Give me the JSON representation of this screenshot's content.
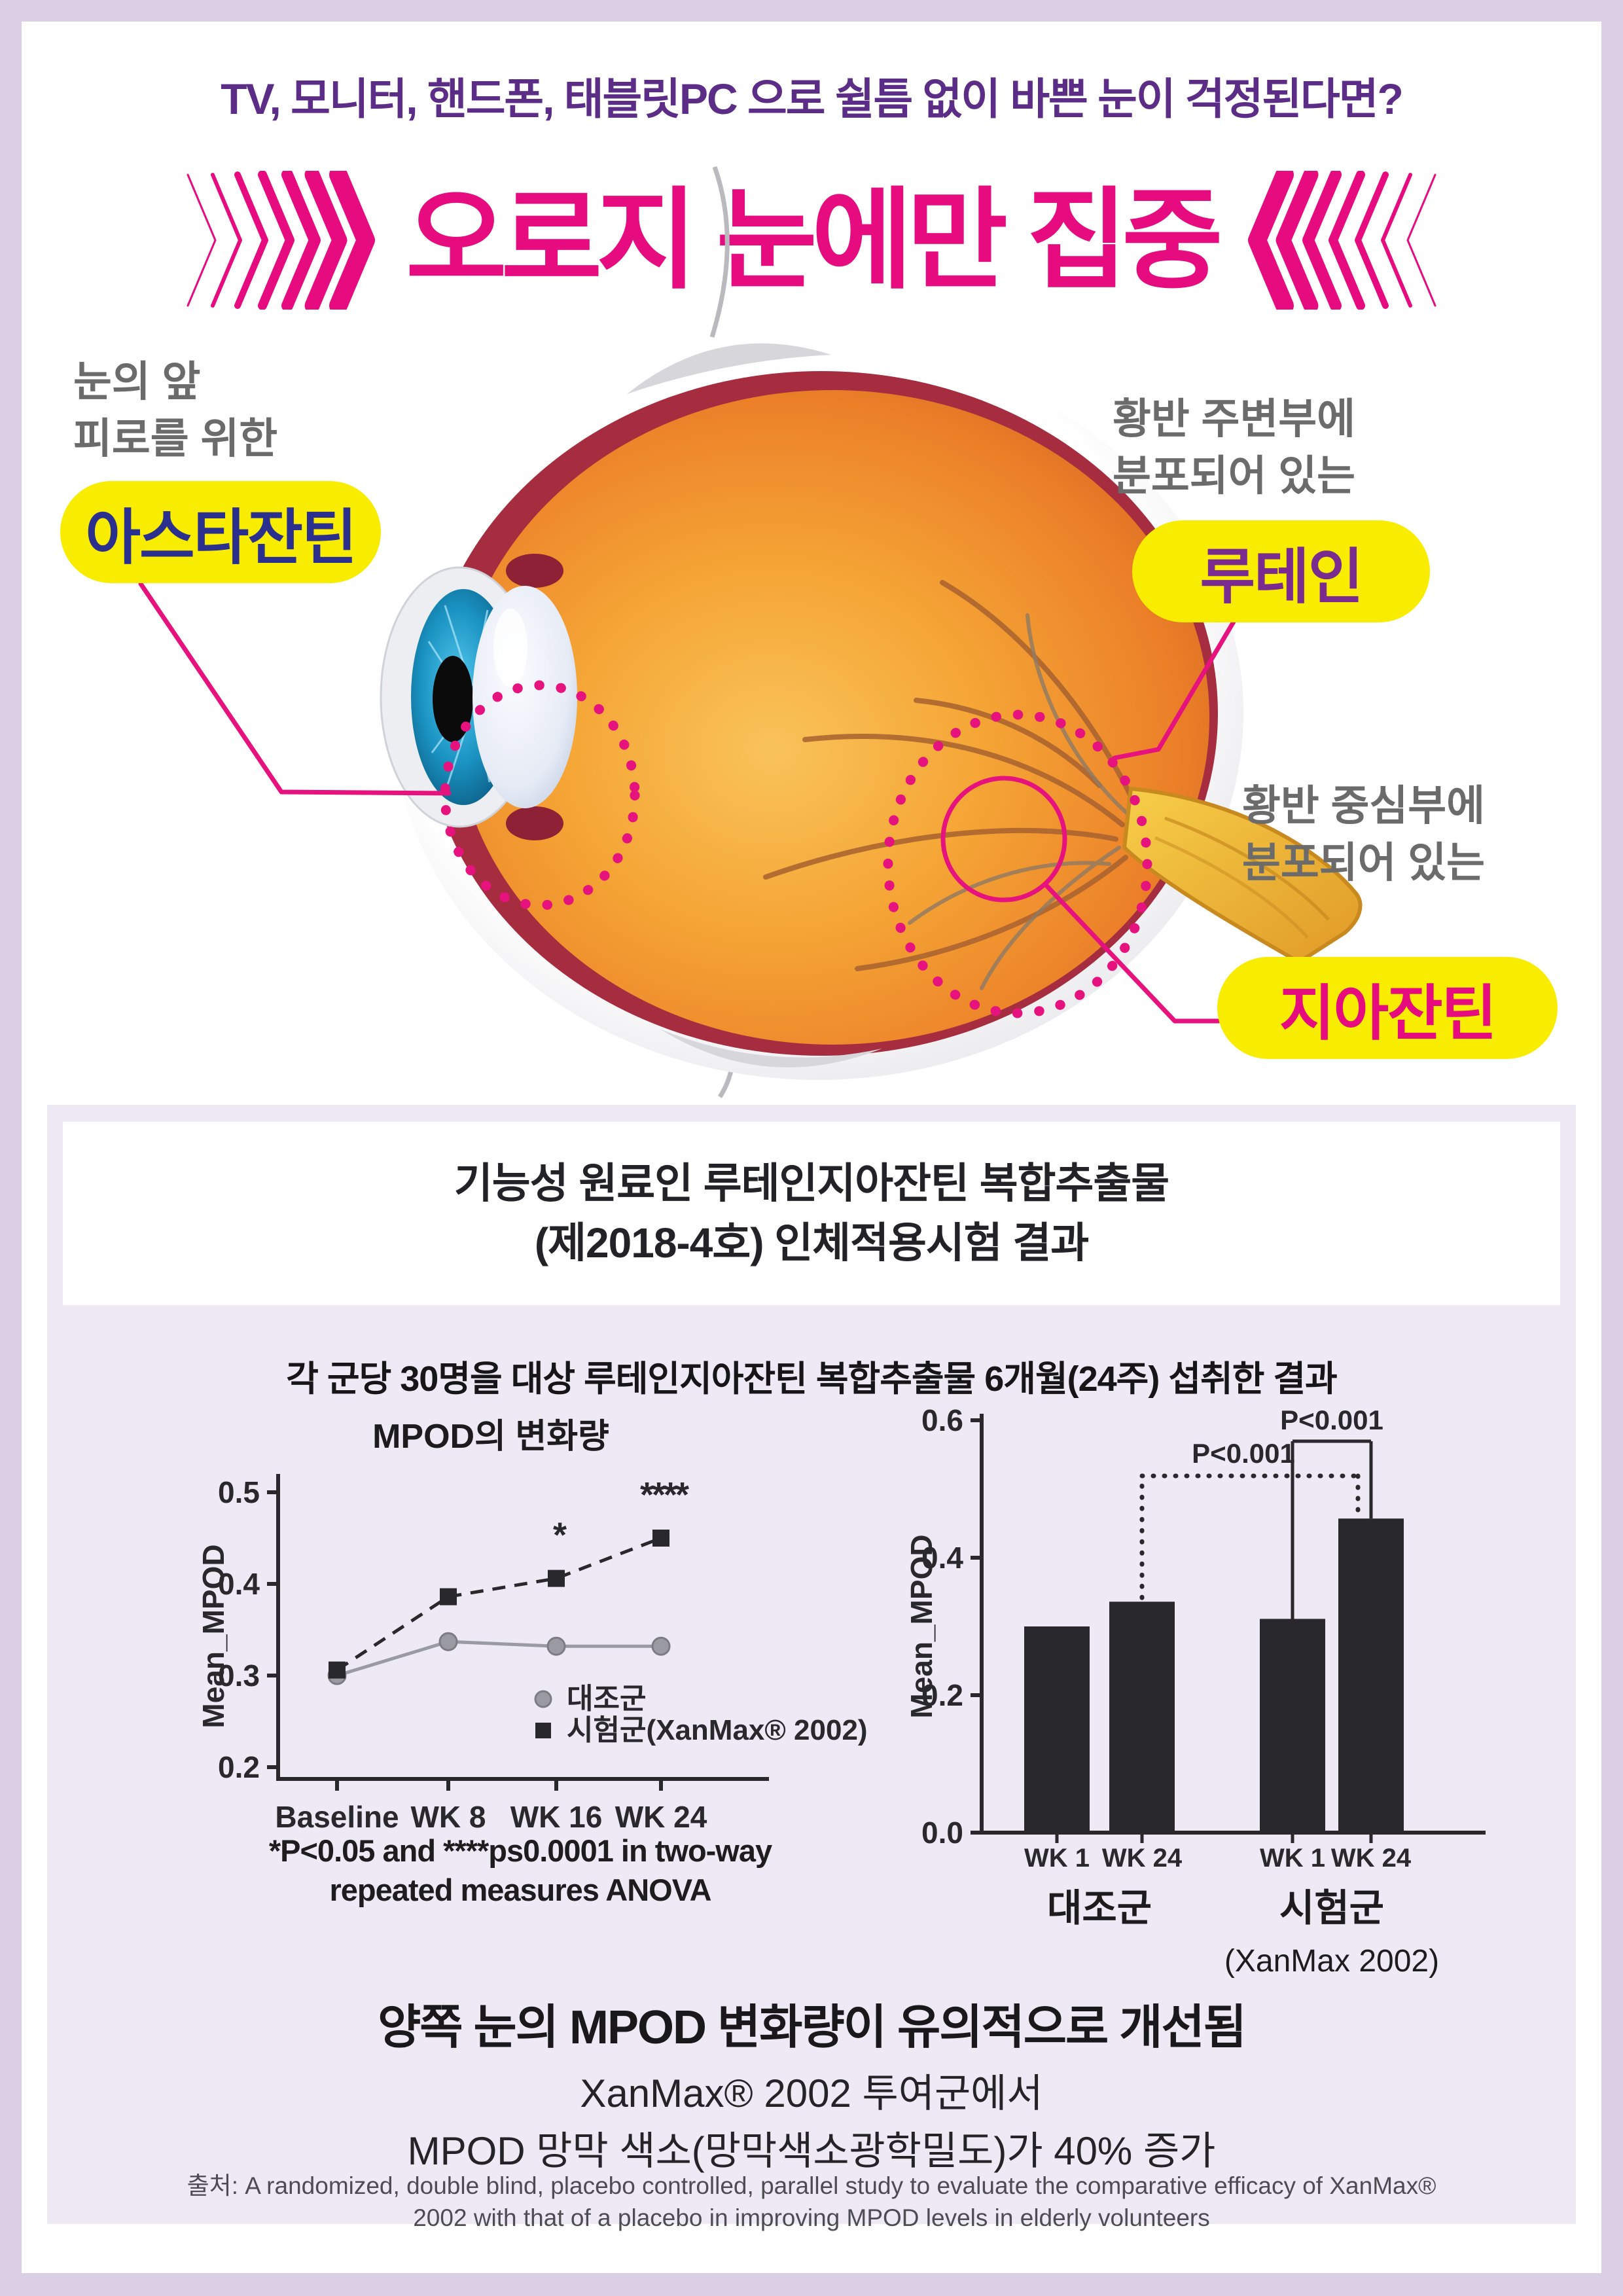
{
  "palette": {
    "page_bg": "#dbcfe5",
    "card_bg": "#ffffff",
    "panel_bg": "#edeaf5",
    "accent_magenta": "#e60c80",
    "header_purple": "#5b2d87",
    "pill_yellow": "#f8ec00",
    "navy": "#2b2f8e",
    "purple": "#7a2b8f",
    "gray_label": "#6b6b6b",
    "chart_dark": "#28282d",
    "chart_gray": "#9a9aa2"
  },
  "header": {
    "line": "TV, 모니터, 핸드폰, 태블릿PC 으로  쉴틈 없이 바쁜 눈이 걱정된다면?"
  },
  "hero": {
    "title": "오로지 눈에만 집중"
  },
  "callouts": {
    "astaxanthin": {
      "desc_line1": "눈의 앞",
      "desc_line2": "피로를 위한",
      "pill": "아스타잔틴"
    },
    "lutein": {
      "desc_line1": "황반 주변부에",
      "desc_line2": "분포되어 있는",
      "pill": "루테인"
    },
    "zeaxanthin": {
      "desc_line1": "황반 중심부에",
      "desc_line2": "분포되어 있는",
      "pill": "지아잔틴"
    }
  },
  "study_panel": {
    "title_line1": "기능성 원료인 루테인지아잔틴 복합추출물",
    "title_line2": "(제2018-4호) 인체적용시험 결과",
    "subtitle": "각 군당 30명을 대상 루테인지아잔틴 복합추출물 6개월(24주) 섭취한 결과",
    "footnote_line1": "*P<0.05 and ****ps0.0001 in two-way",
    "footnote_line2": "repeated measures ANOVA",
    "result_heading": "양쪽 눈의 MPOD 변화량이 유의적으로 개선됨",
    "result_line1": "XanMax® 2002 투여군에서",
    "result_line2": "MPOD 망막 색소(망막색소광학밀도)가 40% 증가",
    "source_line1": "출처: A randomized, double blind, placebo controlled, parallel study to evaluate the comparative efficacy of XanMax®",
    "source_line2": "2002 with that of a placebo in improving MPOD levels in elderly volunteers"
  },
  "chart_data": [
    {
      "type": "line",
      "title": "MPOD의 변화량",
      "xlabel": "",
      "ylabel": "Mean_MPOD",
      "ylim": [
        0.2,
        0.5
      ],
      "yticks": [
        0.2,
        0.3,
        0.4,
        0.5
      ],
      "categories": [
        "Baseline",
        "WK 8",
        "WK 16",
        "WK 24"
      ],
      "series": [
        {
          "name": "대조군",
          "marker": "circle",
          "color": "#9a9aa2",
          "line_style": "solid",
          "values": [
            0.3,
            0.337,
            0.332,
            0.332
          ]
        },
        {
          "name": "시험군(XanMax® 2002)",
          "marker": "square",
          "color": "#28282d",
          "line_style": "dashed",
          "values": [
            0.306,
            0.386,
            0.406,
            0.45
          ]
        }
      ],
      "annotations": [
        {
          "text": "*",
          "category_index": 2,
          "series_index": 1
        },
        {
          "text": "****",
          "category_index": 3,
          "series_index": 1
        }
      ],
      "legend_position": "inside-right-bottom",
      "grid": false
    },
    {
      "type": "bar",
      "title": "",
      "xlabel": "",
      "ylabel": "Mean_MPOD",
      "ylim": [
        0.0,
        0.6
      ],
      "yticks": [
        0.0,
        0.2,
        0.4,
        0.6
      ],
      "bar_color": "#28282d",
      "groups": [
        {
          "label": "대조군",
          "sublabel": "",
          "bars": [
            {
              "label": "WK 1",
              "value": 0.3
            },
            {
              "label": "WK 24",
              "value": 0.336
            }
          ]
        },
        {
          "label": "시험군",
          "sublabel": "(XanMax 2002)",
          "bars": [
            {
              "label": "WK 1",
              "value": 0.311
            },
            {
              "label": "WK 24",
              "value": 0.457
            }
          ]
        }
      ],
      "significance": [
        {
          "label": "P<0.001",
          "style": "dotted",
          "from": "대조군 WK 24",
          "to": "시험군 WK 24"
        },
        {
          "label": "P<0.001",
          "style": "solid",
          "from": "시험군 WK 1",
          "to": "시험군 WK 24"
        }
      ],
      "grid": false
    }
  ]
}
